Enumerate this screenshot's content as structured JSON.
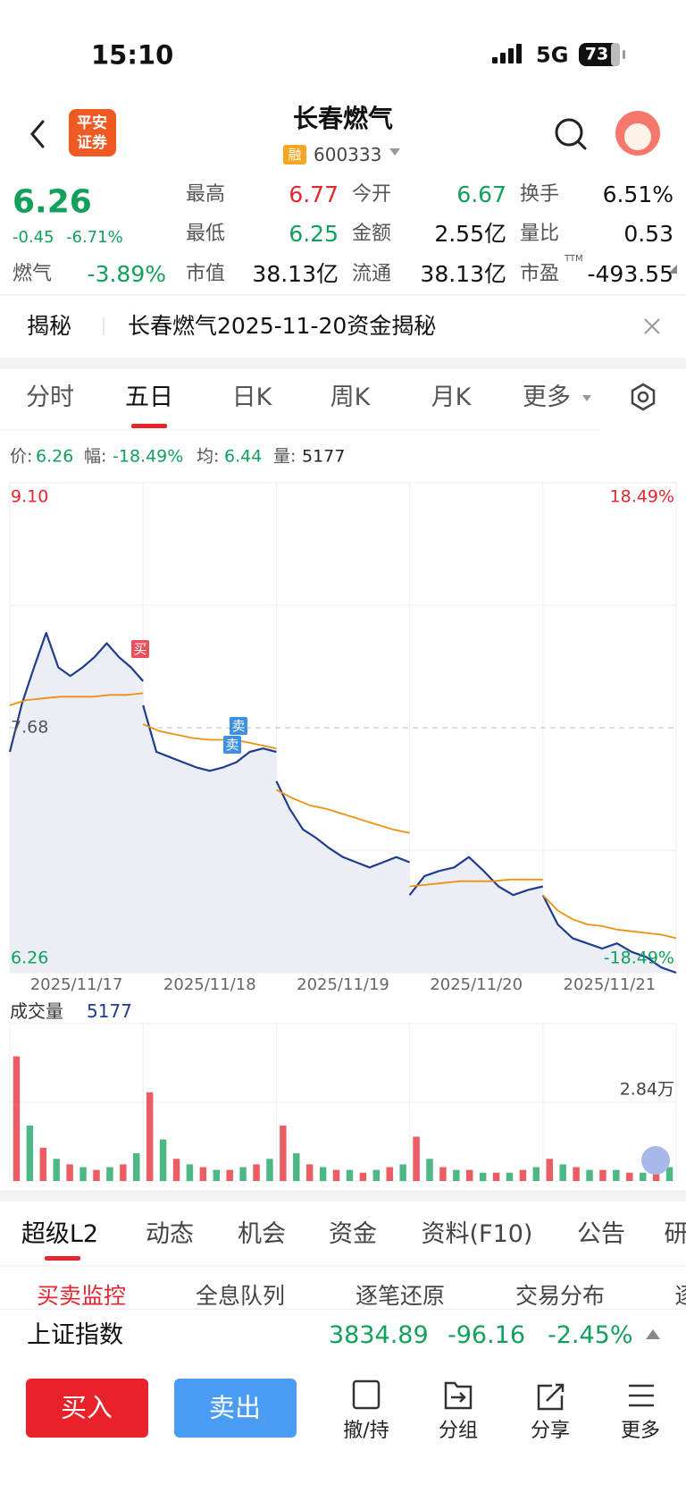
{
  "status_bar": {
    "time": "15:10",
    "network": "5G",
    "battery": "73"
  },
  "header": {
    "logo": [
      "平安",
      "证券"
    ],
    "title": "长春燃气",
    "tag": "融",
    "code": "600333"
  },
  "quote": {
    "price": "6.26",
    "change": "-0.45",
    "change_pct": "-6.71%",
    "sector": "燃气",
    "sector_pct": "-3.89%",
    "up_color": "#e4262f",
    "down_color": "#12a05c",
    "stats": [
      {
        "label": "最高",
        "value": "6.77",
        "color": "#e4262f"
      },
      {
        "label": "今开",
        "value": "6.67",
        "color": "#12a05c"
      },
      {
        "label": "换手",
        "value": "6.51%",
        "color": "#111111"
      },
      {
        "label": "最低",
        "value": "6.25",
        "color": "#12a05c"
      },
      {
        "label": "金额",
        "value": "2.55亿",
        "color": "#111111"
      },
      {
        "label": "量比",
        "value": "0.53",
        "color": "#111111"
      },
      {
        "label": "市值",
        "value": "38.13亿",
        "color": "#111111"
      },
      {
        "label": "流通",
        "value": "38.13亿",
        "color": "#111111"
      },
      {
        "label": "市盈",
        "value": "-493.55",
        "color": "#111111",
        "sup": "TTM"
      }
    ]
  },
  "banner": {
    "tag": "揭秘",
    "text": "长春燃气2025-11-20资金揭秘"
  },
  "chart_tabs": [
    "分时",
    "五日",
    "日K",
    "周K",
    "月K",
    "更多"
  ],
  "active_chart_tab": 1,
  "info": [
    {
      "label": "价:",
      "value": "6.26"
    },
    {
      "label": "幅:",
      "value": "-18.49%"
    },
    {
      "label": "均:",
      "value": "6.44"
    },
    {
      "label": "量:",
      "value": "5177"
    }
  ],
  "chart_data": {
    "type": "line",
    "categories": [
      "2025/11/17",
      "2025/11/18",
      "2025/11/19",
      "2025/11/20",
      "2025/11/21"
    ],
    "ylim": [
      6.26,
      9.1
    ],
    "yticks": [
      {
        "value": 9.1,
        "label": "9.10"
      },
      7.68,
      6.26
    ],
    "y2lim": [
      -18.49,
      18.49
    ],
    "y2ticks": [
      {
        "value": 18.49,
        "label": "18.49%"
      },
      {
        "value": -18.49,
        "label": "-18.49%"
      }
    ],
    "series": [
      {
        "color": "#1f3c8f",
        "values": [
          [
            7.54,
            7.82,
            8.03,
            8.23,
            8.03,
            7.98,
            8.03,
            8.09,
            8.17,
            8.09,
            8.03,
            7.95
          ],
          [
            7.81,
            7.54,
            7.51,
            7.48,
            7.45,
            7.43,
            7.45,
            7.48,
            7.54,
            7.56,
            7.54
          ],
          [
            7.37,
            7.21,
            7.09,
            7.04,
            6.98,
            6.93,
            6.9,
            6.87,
            6.9,
            6.93,
            6.9
          ],
          [
            6.71,
            6.82,
            6.85,
            6.87,
            6.93,
            6.85,
            6.76,
            6.71,
            6.74,
            6.76
          ],
          [
            6.71,
            6.54,
            6.46,
            6.43,
            6.4,
            6.43,
            6.38,
            6.35,
            6.29,
            6.26
          ]
        ]
      },
      {
        "color": "#f0900e",
        "values": [
          [
            7.81,
            7.84,
            7.85,
            7.86,
            7.86,
            7.86,
            7.87,
            7.87,
            7.88
          ],
          [
            7.7,
            7.66,
            7.64,
            7.62,
            7.61,
            7.61,
            7.6,
            7.58,
            7.56
          ],
          [
            7.32,
            7.27,
            7.23,
            7.21,
            7.18,
            7.15,
            7.12,
            7.09,
            7.07
          ],
          [
            6.76,
            6.77,
            6.78,
            6.79,
            6.79,
            6.79,
            6.8,
            6.8,
            6.8
          ],
          [
            6.71,
            6.62,
            6.57,
            6.54,
            6.53,
            6.51,
            6.5,
            6.49,
            6.48,
            6.46
          ]
        ]
      }
    ],
    "markers": [
      {
        "label": "买",
        "color": "#e8505b"
      },
      {
        "label": "卖",
        "color": "#3d8fe0"
      },
      {
        "label": "卖",
        "color": "#3d8fe0"
      }
    ],
    "volume": {
      "title": "成交量",
      "value": "5177",
      "ylim": [
        0,
        5.68
      ],
      "yticks": [
        {
          "value": 2.84,
          "label": "2.84万"
        }
      ],
      "colors": [
        "#e4262f",
        "#12a05c"
      ],
      "values": [
        [
          4.5,
          2.0,
          1.2,
          0.8,
          0.6,
          0.5,
          0.4,
          0.5,
          0.6,
          1.0
        ],
        [
          3.2,
          1.5,
          0.8,
          0.6,
          0.5,
          0.4,
          0.4,
          0.5,
          0.6,
          0.8
        ],
        [
          2.0,
          1.0,
          0.6,
          0.5,
          0.4,
          0.4,
          0.3,
          0.4,
          0.5,
          0.6
        ],
        [
          1.6,
          0.8,
          0.5,
          0.4,
          0.4,
          0.3,
          0.3,
          0.3,
          0.4,
          0.5
        ],
        [
          0.8,
          0.6,
          0.5,
          0.4,
          0.4,
          0.4,
          0.3,
          0.3,
          0.4,
          0.5
        ]
      ]
    }
  },
  "detail_tabs": [
    "超级L2",
    "动态",
    "机会",
    "资金",
    "资料(F10)",
    "公告",
    "研"
  ],
  "sub_tabs": [
    "买卖监控",
    "全息队列",
    "逐笔还原",
    "交易分布",
    "逐"
  ],
  "index": {
    "name": "上证指数",
    "value": "3834.89",
    "change": "-96.16",
    "change_pct": "-2.45%"
  },
  "actions": {
    "buy": "买入",
    "sell": "卖出",
    "tools": [
      "撤/持",
      "分组",
      "分享",
      "更多"
    ]
  }
}
